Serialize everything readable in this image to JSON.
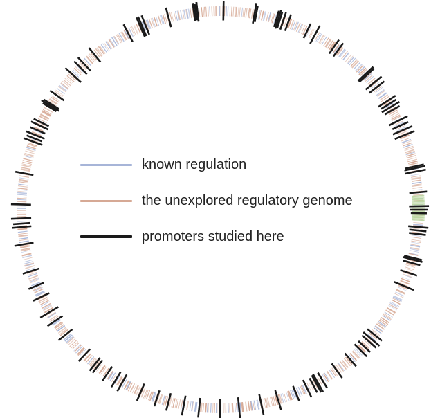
{
  "legend": {
    "items": [
      {
        "label": "known regulation",
        "color": "#a7b5d8"
      },
      {
        "label": "the unexplored regulatory genome",
        "color": "#d6a995"
      },
      {
        "label": "promoters studied here",
        "color": "#1a1a1a"
      }
    ]
  },
  "highlight_color": "#b9d6a0"
}
